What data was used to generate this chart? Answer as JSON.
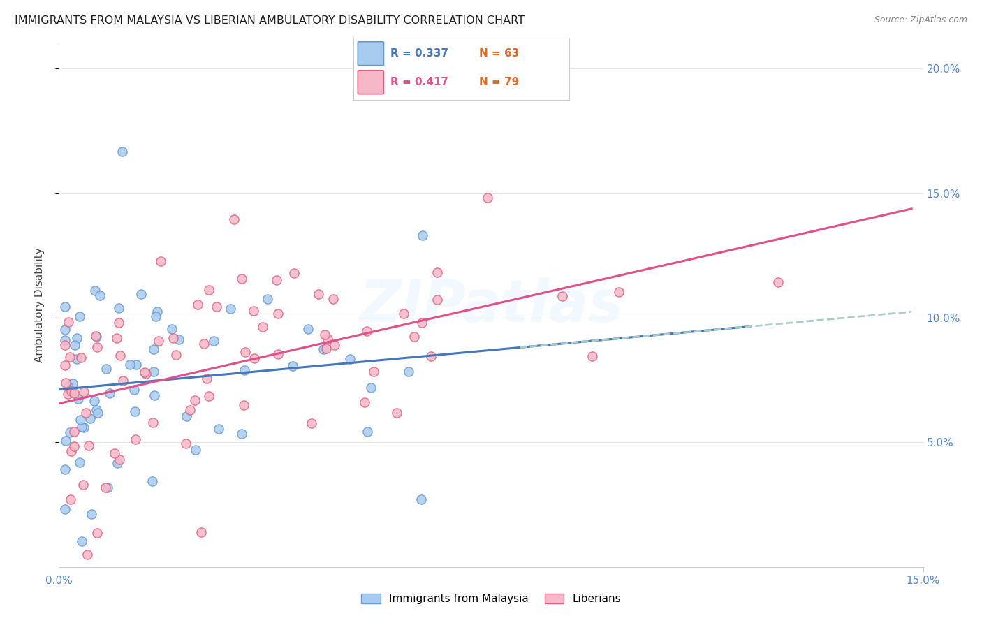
{
  "title": "IMMIGRANTS FROM MALAYSIA VS LIBERIAN AMBULATORY DISABILITY CORRELATION CHART",
  "source": "Source: ZipAtlas.com",
  "ylabel": "Ambulatory Disability",
  "xmin": 0.0,
  "xmax": 0.15,
  "ymin": 0.0,
  "ymax": 0.21,
  "ytick_vals": [
    0.05,
    0.1,
    0.15,
    0.2
  ],
  "ytick_labels": [
    "5.0%",
    "10.0%",
    "15.0%",
    "20.0%"
  ],
  "malaysia_fill": "#A8CBF0",
  "malaysia_edge": "#6699CC",
  "liberia_fill": "#F5B8C8",
  "liberia_edge": "#E06080",
  "malaysia_trend_color": "#4477BB",
  "liberia_trend_color": "#E0508A",
  "dashed_trend_color": "#AACCCC",
  "r_malaysia": 0.337,
  "n_malaysia": 63,
  "r_liberia": 0.417,
  "n_liberia": 79,
  "legend_label_malaysia": "Immigrants from Malaysia",
  "legend_label_liberia": "Liberians",
  "watermark_text": "ZIPatlas",
  "background_color": "#ffffff",
  "title_fontsize": 11.5,
  "source_fontsize": 9,
  "r_text_color_malaysia": "#4477BB",
  "r_text_color_liberia": "#E0508A",
  "n_text_color": "#E86820",
  "tick_color": "#5588CC"
}
